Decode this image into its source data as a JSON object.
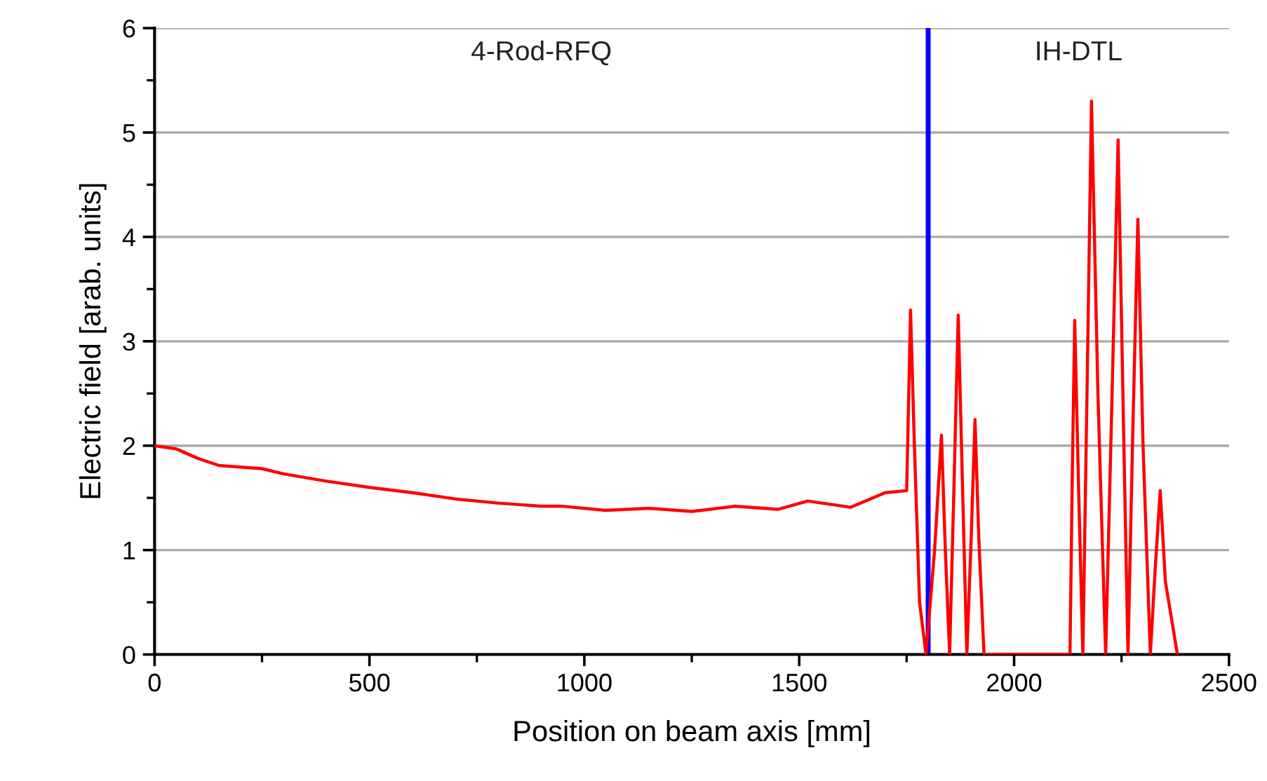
{
  "chart_data": {
    "type": "line",
    "xlabel": "Position on beam axis [mm]",
    "ylabel": "Electric field [arab. units]",
    "xlim": [
      0,
      2500
    ],
    "ylim": [
      0,
      6
    ],
    "xticks": [
      0,
      500,
      1000,
      1500,
      2000,
      2500
    ],
    "yticks": [
      0,
      1,
      2,
      3,
      4,
      5,
      6
    ],
    "grid": "y",
    "legend": false,
    "marker": "none",
    "line_style": "solid",
    "series": [
      {
        "color": "#ff0000",
        "x": [
          0,
          50,
          100,
          150,
          250,
          300,
          400,
          500,
          600,
          700,
          800,
          900,
          950,
          1050,
          1150,
          1250,
          1350,
          1450,
          1520,
          1620,
          1700,
          1750,
          1759,
          1768,
          1780,
          1795,
          1815,
          1831,
          1840,
          1850,
          1860,
          1870,
          1880,
          1890,
          1900,
          1909,
          1918,
          1930,
          2130,
          2135,
          2141,
          2150,
          2160,
          2170,
          2180,
          2195,
          2213,
          2228,
          2242,
          2255,
          2265,
          2276,
          2288,
          2300,
          2317,
          2328,
          2340,
          2352,
          2380
        ],
        "values": [
          2.0,
          1.97,
          1.88,
          1.81,
          1.78,
          1.73,
          1.66,
          1.6,
          1.55,
          1.49,
          1.45,
          1.42,
          1.42,
          1.38,
          1.4,
          1.37,
          1.42,
          1.39,
          1.47,
          1.41,
          1.55,
          1.57,
          3.3,
          2.0,
          0.5,
          0,
          1.0,
          2.1,
          1.0,
          0,
          1.6,
          3.25,
          1.6,
          0,
          1.1,
          2.25,
          1.1,
          0,
          0,
          1.6,
          3.2,
          1.6,
          0,
          2.6,
          5.3,
          2.5,
          0,
          2.5,
          4.93,
          2.1,
          0,
          2.1,
          4.17,
          2.0,
          0,
          0.8,
          1.57,
          0.7,
          0
        ]
      }
    ],
    "ref_lines": [
      {
        "axis": "x",
        "value": 1800,
        "color": "#0000ff",
        "line_style": "solid"
      }
    ],
    "annotations": [
      "4-Rod-RFQ",
      "IH-DTL"
    ]
  }
}
